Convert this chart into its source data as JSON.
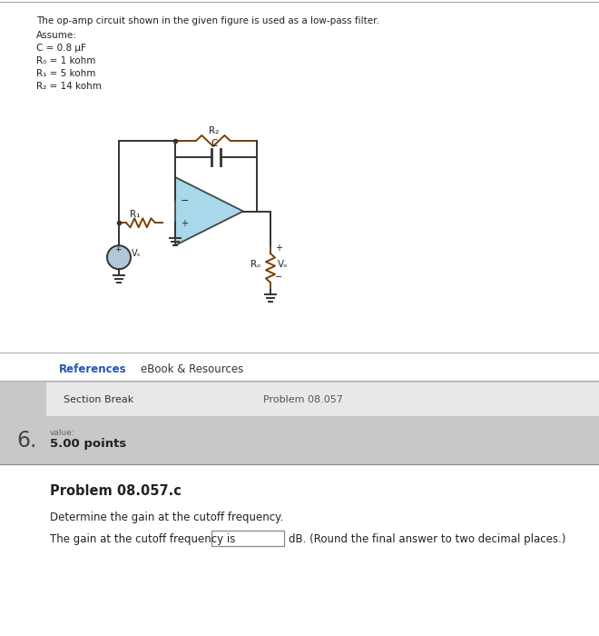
{
  "bg_color": "#c8c8c8",
  "white": "#ffffff",
  "light_gray_bg": "#e8e8e8",
  "med_gray": "#d0d0d0",
  "title_text": "The op-amp circuit shown in the given figure is used as a low-pass filter.",
  "assume_text": "Assume:",
  "params": [
    "C = 0.8 μF",
    "R₀ = 1 kohm",
    "R₁ = 5 kohm",
    "R₂ = 14 kohm"
  ],
  "references_text": "References",
  "ebook_text": "eBook & Resources",
  "section_break_text": "Section Break",
  "problem_ref": "Problem 08.057",
  "number_label": "6.",
  "value_label": "value:",
  "points_label": "5.00 points",
  "problem_title": "Problem 08.057.c",
  "problem_desc": "Determine the gain at the cutoff frequency.",
  "answer_prefix": "The gain at the cutoff frequency is",
  "answer_suffix": "dB. (Round the final answer to two decimal places.)",
  "blue_ref": "#2255aa",
  "resistor_color": "#7B3F00",
  "line_color": "#333333",
  "tri_fill": "#a8d8ea",
  "vs_fill": "#b0c8d8"
}
